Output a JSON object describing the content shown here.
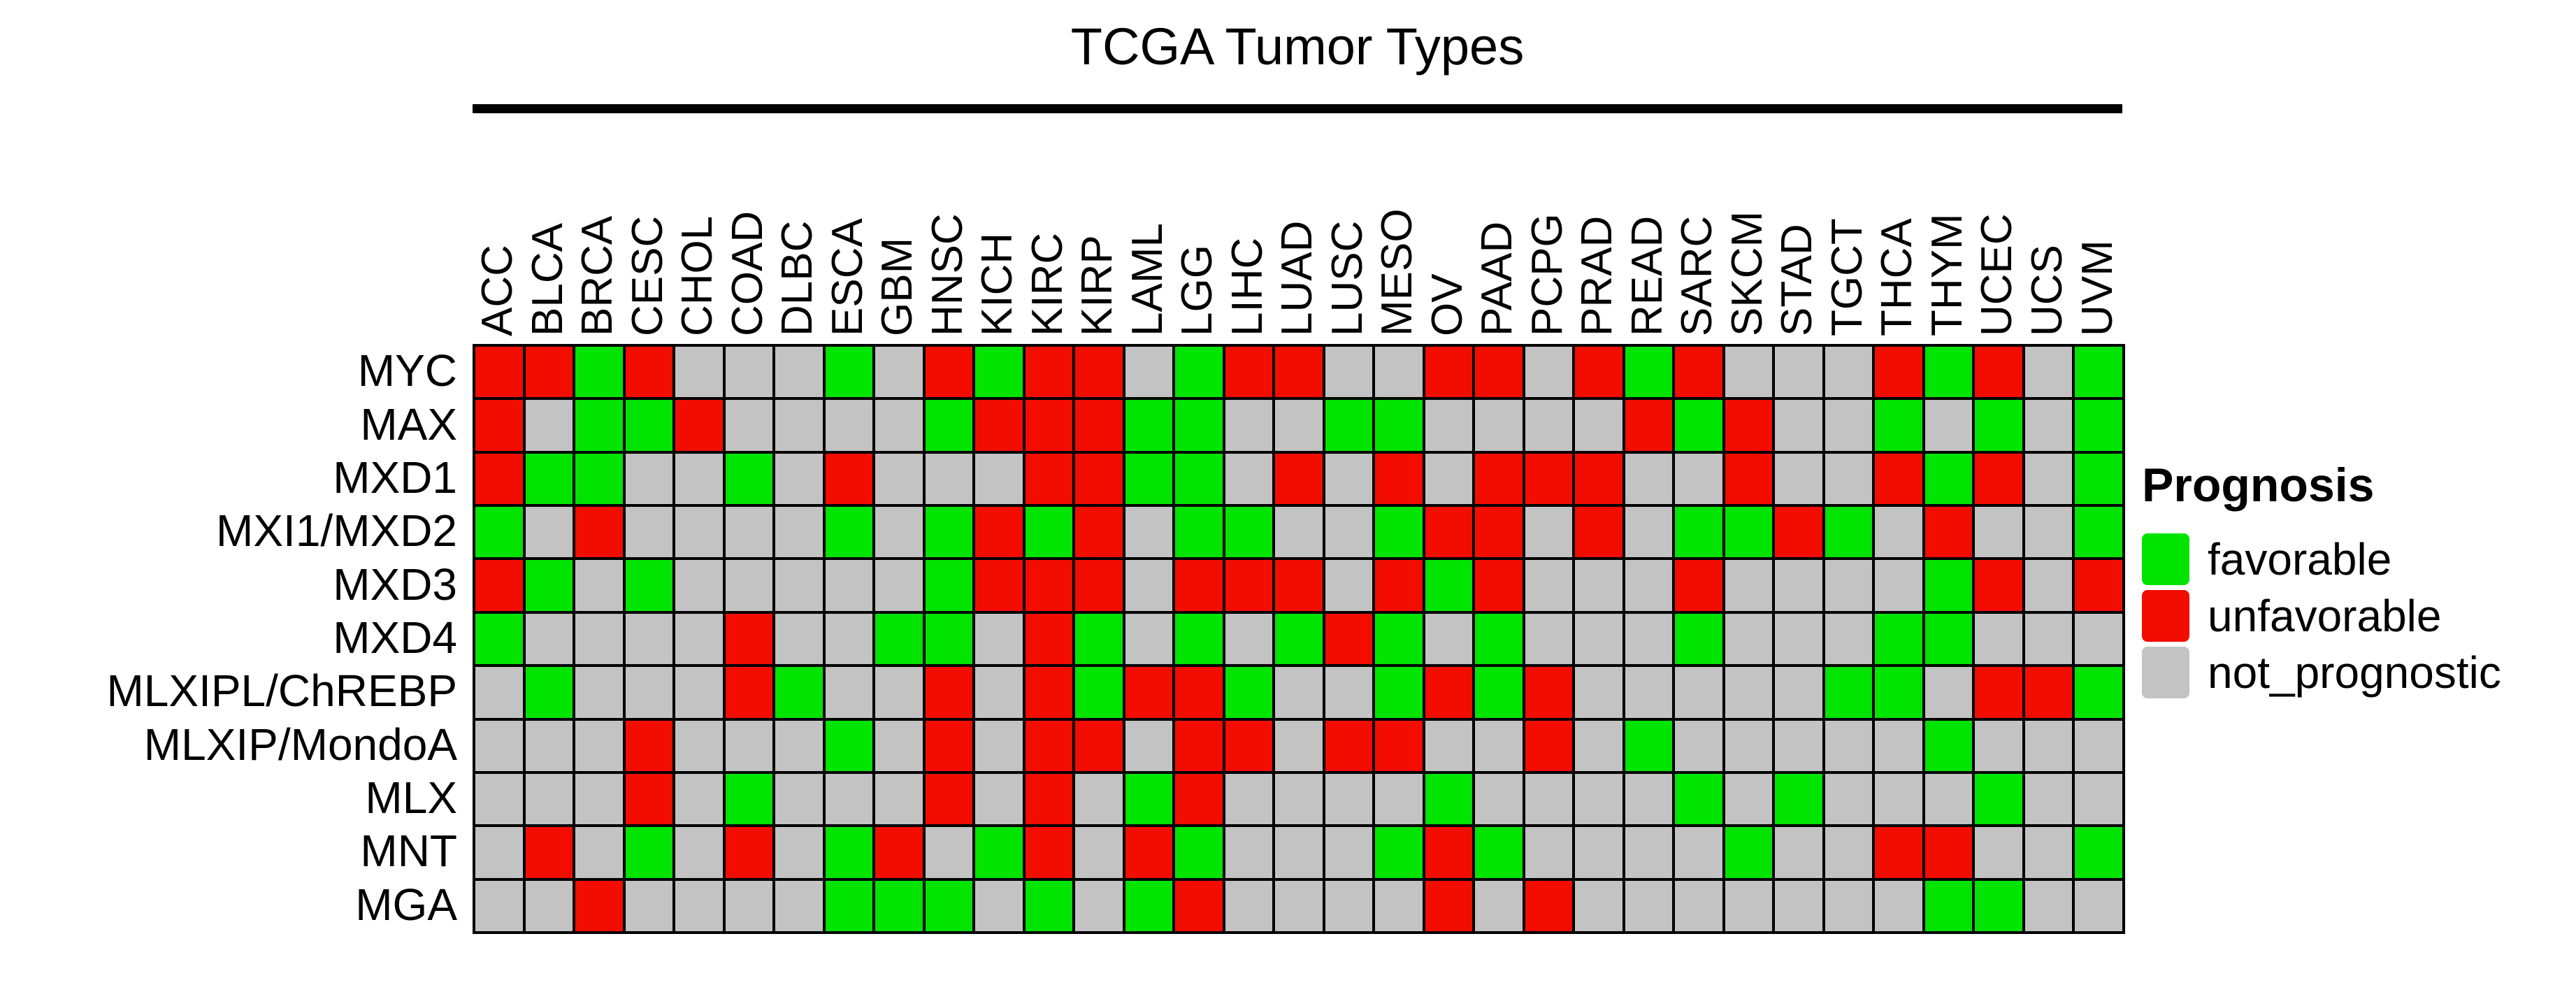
{
  "legend": {
    "title": "Prognosis",
    "items": [
      {
        "key": "F",
        "label": "favorable",
        "color": "#00e400"
      },
      {
        "key": "U",
        "label": "unfavorable",
        "color": "#f20d00"
      },
      {
        "key": "N",
        "label": "not_prognostic",
        "color": "#c3c3c3"
      }
    ]
  },
  "chart_data": {
    "type": "heatmap",
    "title": "TCGA Tumor Types",
    "xlabel": "TCGA Tumor Types",
    "ylabel": "",
    "legend_position": "right",
    "columns": [
      "ACC",
      "BLCA",
      "BRCA",
      "CESC",
      "CHOL",
      "COAD",
      "DLBC",
      "ESCA",
      "GBM",
      "HNSC",
      "KICH",
      "KIRC",
      "KIRP",
      "LAML",
      "LGG",
      "LIHC",
      "LUAD",
      "LUSC",
      "MESO",
      "OV",
      "PAAD",
      "PCPG",
      "PRAD",
      "READ",
      "SARC",
      "SKCM",
      "STAD",
      "TGCT",
      "THCA",
      "THYM",
      "UCEC",
      "UCS",
      "UVM"
    ],
    "rows": [
      "MYC",
      "MAX",
      "MXD1",
      "MXI1/MXD2",
      "MXD3",
      "MXD4",
      "MLXIPL/ChREBP",
      "MLXIP/MondoA",
      "MLX",
      "MNT",
      "MGA"
    ],
    "value_legend": {
      "F": "favorable",
      "U": "unfavorable",
      "N": "not_prognostic"
    },
    "values": [
      "UUFUNNNFNUFUUNFUUNNUUNUFUNNNUFUNF",
      "UNFFUNNNNFUUUFFNNFFNNNNUFUNNFNFNF",
      "UFFNNFNUNNNUUFFNUNUNUUUNNUNNUFUNF",
      "FNUNNNNFNFUFUNFFNNFUUNUNFFUFNUNNF",
      "UFNFNNNNNFUUUNUUUNUFUNNNUNNNNFUNU",
      "FNNNNUNNFFNUFNFNFUFNFNNNFNNNFFNNN",
      "NFNNNUFNNUNUFUUFNNFUFUNNNNNFFNUUF",
      "NNNUNNNFNUNUUNUUNUUNNUNFNNNNNFNNN",
      "NNNUNFNNNUNUNFUNNNNFNNNNFNFNNNFNN",
      "NUNFNUNFUNFUNUFNNNFUFNNNNFNNUUNNF",
      "NNUNNNNFFFNFNFUNNNNUNUNNNNNNNFFNN"
    ]
  }
}
